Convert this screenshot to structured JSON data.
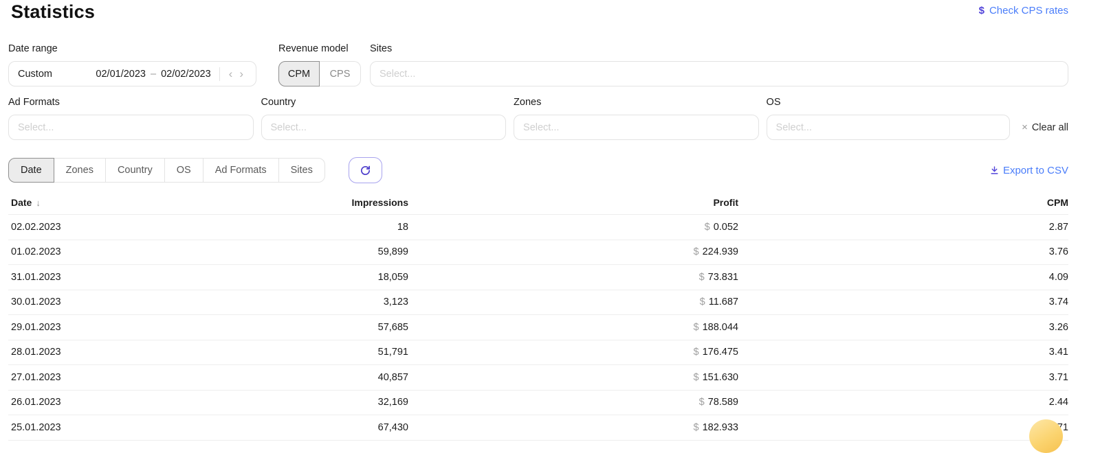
{
  "page": {
    "title": "Statistics"
  },
  "header": {
    "check_cps_rates": {
      "icon": "$",
      "label": "Check CPS rates"
    }
  },
  "filters": {
    "date_range": {
      "label": "Date range",
      "preset": "Custom",
      "start_date": "02/01/2023",
      "separator": "–",
      "end_date": "02/02/2023",
      "prev_icon": "‹",
      "next_icon": "›"
    },
    "revenue_model": {
      "label": "Revenue model",
      "options": [
        "CPM",
        "CPS"
      ],
      "selected": "CPM"
    },
    "sites": {
      "label": "Sites",
      "placeholder": "Select..."
    },
    "row2": [
      {
        "id": "ad-formats",
        "label": "Ad Formats",
        "placeholder": "Select..."
      },
      {
        "id": "country",
        "label": "Country",
        "placeholder": "Select..."
      },
      {
        "id": "zones",
        "label": "Zones",
        "placeholder": "Select..."
      },
      {
        "id": "os",
        "label": "OS",
        "placeholder": "Select..."
      }
    ],
    "clear_all_icon": "×",
    "clear_all_label": "Clear all"
  },
  "toolbar": {
    "tabs": [
      "Date",
      "Zones",
      "Country",
      "OS",
      "Ad Formats",
      "Sites"
    ],
    "active_tab": "Date",
    "export_label": "Export to CSV"
  },
  "table": {
    "sort_icon": "↓",
    "currency_symbol": "$",
    "columns": [
      {
        "key": "date",
        "label": "Date",
        "sorted": "desc"
      },
      {
        "key": "impressions",
        "label": "Impressions"
      },
      {
        "key": "profit",
        "label": "Profit"
      },
      {
        "key": "cpm",
        "label": "CPM"
      }
    ],
    "rows": [
      {
        "date": "02.02.2023",
        "impressions": "18",
        "profit": "0.052",
        "cpm": "2.87"
      },
      {
        "date": "01.02.2023",
        "impressions": "59,899",
        "profit": "224.939",
        "cpm": "3.76"
      },
      {
        "date": "31.01.2023",
        "impressions": "18,059",
        "profit": "73.831",
        "cpm": "4.09"
      },
      {
        "date": "30.01.2023",
        "impressions": "3,123",
        "profit": "11.687",
        "cpm": "3.74"
      },
      {
        "date": "29.01.2023",
        "impressions": "57,685",
        "profit": "188.044",
        "cpm": "3.26"
      },
      {
        "date": "28.01.2023",
        "impressions": "51,791",
        "profit": "176.475",
        "cpm": "3.41"
      },
      {
        "date": "27.01.2023",
        "impressions": "40,857",
        "profit": "151.630",
        "cpm": "3.71"
      },
      {
        "date": "26.01.2023",
        "impressions": "32,169",
        "profit": "78.589",
        "cpm": "2.44"
      },
      {
        "date": "25.01.2023",
        "impressions": "67,430",
        "profit": "182.933",
        "cpm": "2.71"
      }
    ]
  },
  "colors": {
    "link_blue": "#4a7dfa",
    "accent_indigo": "#5143d9",
    "active_tab_bg": "#ececec",
    "chat_bubble_yellow": "#fbd470"
  }
}
